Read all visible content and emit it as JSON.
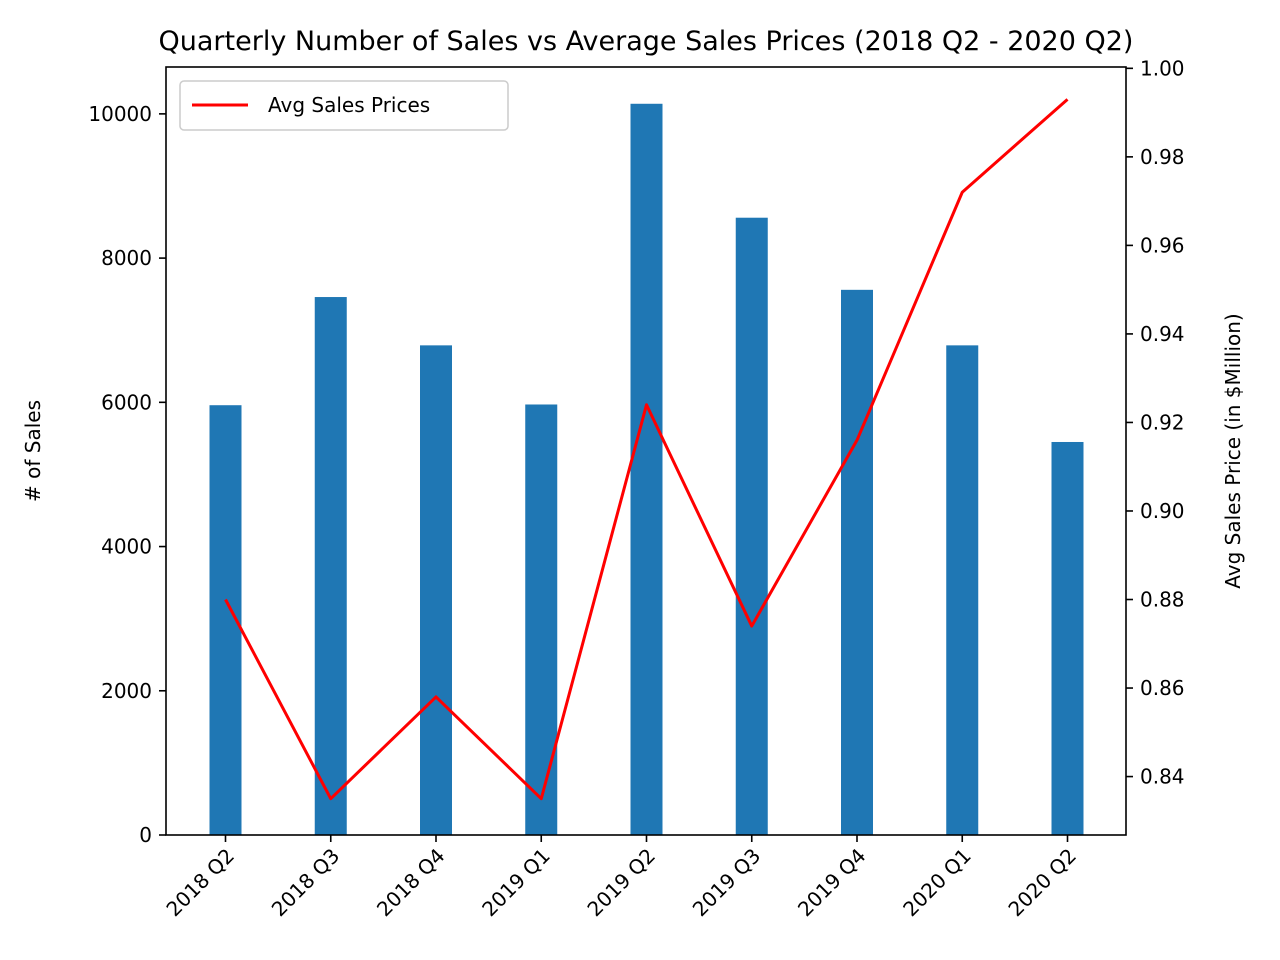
{
  "chart_data": {
    "type": "bar",
    "title": "Quarterly Number of Sales vs Average Sales Prices (2018 Q2 - 2020 Q2)",
    "categories": [
      "2018 Q2",
      "2018 Q3",
      "2018 Q4",
      "2019 Q1",
      "2019 Q2",
      "2019 Q3",
      "2019 Q4",
      "2020 Q1",
      "2020 Q2"
    ],
    "ylabel": "# of Sales",
    "y2label": "Avg Sales Price (in $Million)",
    "ylim": [
      0,
      10650
    ],
    "y2lim": [
      0.8268,
      1.0003
    ],
    "yticks": [
      0,
      2000,
      4000,
      6000,
      8000,
      10000
    ],
    "y2ticks": [
      0.84,
      0.86,
      0.88,
      0.9,
      0.92,
      0.94,
      0.96,
      0.98,
      1.0
    ],
    "legend_position": "top-left",
    "grid": false,
    "series": [
      {
        "type": "bar",
        "axis": "left",
        "color": "#1f77b4",
        "values": [
          5960,
          7460,
          6790,
          5970,
          10140,
          8560,
          7560,
          6790,
          5450
        ]
      },
      {
        "type": "line",
        "axis": "right",
        "name": "Avg Sales Prices",
        "color": "#ff0000",
        "values": [
          0.88,
          0.835,
          0.858,
          0.835,
          0.924,
          0.874,
          0.916,
          0.972,
          0.993
        ]
      }
    ]
  }
}
